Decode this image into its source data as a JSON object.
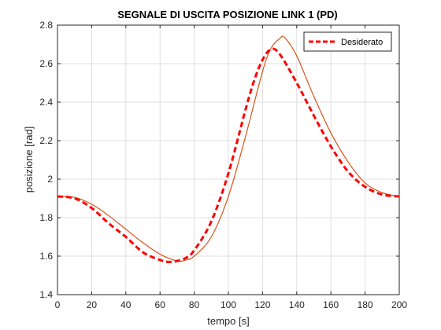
{
  "chart_data": {
    "type": "line",
    "title": "SEGNALE DI USCITA POSIZIONE LINK 1 (PD)",
    "xlabel": "tempo [s]",
    "ylabel": "posizione [rad]",
    "xlim": [
      0,
      200
    ],
    "ylim": [
      1.4,
      2.8
    ],
    "xticks": [
      0,
      20,
      40,
      60,
      80,
      100,
      120,
      140,
      160,
      180,
      200
    ],
    "yticks": [
      1.4,
      1.6,
      1.8,
      2,
      2.2,
      2.4,
      2.6,
      2.8
    ],
    "grid": true,
    "legend_position": "top-right",
    "series": [
      {
        "name": "Desiderato",
        "style": "dashed",
        "color": "#ff0000",
        "in_legend": true,
        "x": [
          0,
          10,
          20,
          30,
          40,
          50,
          60,
          65,
          70,
          75,
          80,
          90,
          100,
          110,
          115,
          120,
          125,
          130,
          140,
          150,
          160,
          170,
          180,
          190,
          200
        ],
        "y": [
          1.91,
          1.9,
          1.85,
          1.77,
          1.7,
          1.62,
          1.58,
          1.57,
          1.575,
          1.59,
          1.63,
          1.78,
          2.03,
          2.36,
          2.51,
          2.62,
          2.675,
          2.65,
          2.5,
          2.33,
          2.17,
          2.04,
          1.96,
          1.92,
          1.91
        ]
      },
      {
        "style": "solid",
        "color": "#d95319",
        "in_legend": false,
        "x": [
          0,
          10,
          20,
          30,
          40,
          50,
          60,
          70,
          75,
          80,
          90,
          100,
          110,
          120,
          125,
          130,
          133,
          140,
          150,
          160,
          170,
          180,
          190,
          200
        ],
        "y": [
          1.91,
          1.905,
          1.87,
          1.81,
          1.74,
          1.67,
          1.61,
          1.575,
          1.58,
          1.6,
          1.7,
          1.91,
          2.22,
          2.56,
          2.68,
          2.73,
          2.735,
          2.64,
          2.43,
          2.24,
          2.09,
          1.98,
          1.93,
          1.91
        ]
      }
    ]
  }
}
